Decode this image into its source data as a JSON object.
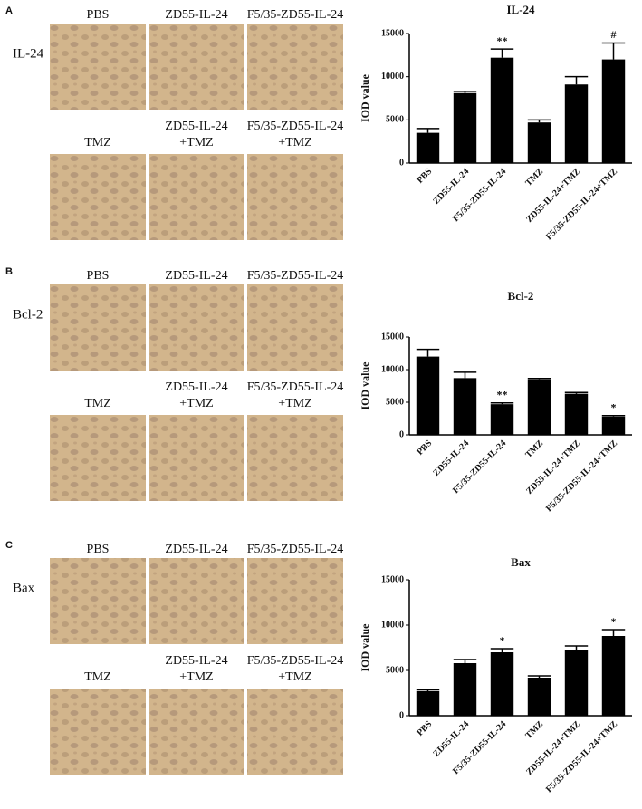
{
  "panels": [
    {
      "label": "A",
      "marker": "IL-24",
      "top": [
        "PBS",
        "ZD55-IL-24",
        "F5/35-ZD55-IL-24"
      ],
      "bottom": [
        [
          "TMZ"
        ],
        [
          "ZD55-IL-24",
          "+TMZ"
        ],
        [
          "F5/35-ZD55-IL-24",
          "+TMZ"
        ]
      ]
    },
    {
      "label": "B",
      "marker": "Bcl-2",
      "top": [
        "PBS",
        "ZD55-IL-24",
        "F5/35-ZD55-IL-24"
      ],
      "bottom": [
        [
          "TMZ"
        ],
        [
          "ZD55-IL-24",
          "+TMZ"
        ],
        [
          "F5/35-ZD55-IL-24",
          "+TMZ"
        ]
      ]
    },
    {
      "label": "C",
      "marker": "Bax",
      "top": [
        "PBS",
        "ZD55-IL-24",
        "F5/35-ZD55-IL-24"
      ],
      "bottom": [
        [
          "TMZ"
        ],
        [
          "ZD55-IL-24",
          "+TMZ"
        ],
        [
          "F5/35-ZD55-IL-24",
          "+TMZ"
        ]
      ]
    }
  ],
  "chart_data": [
    {
      "type": "bar",
      "title": "IL-24",
      "ylabel": "IOD value",
      "color": "#000000",
      "categories": [
        "PBS",
        "ZD55-IL-24",
        "F5/35-ZD55-IL-24",
        "TMZ",
        "ZD55-IL-24+TMZ",
        "F5/35-ZD55-IL-24+TMZ"
      ],
      "values": [
        3500,
        8100,
        12200,
        4700,
        9100,
        12000
      ],
      "errors": [
        500,
        200,
        1000,
        300,
        900,
        1900
      ],
      "annotations": [
        {
          "index": 2,
          "text": "**"
        },
        {
          "index": 5,
          "text": "#"
        }
      ],
      "ylim": [
        0,
        15000
      ],
      "yticks": [
        0,
        5000,
        10000,
        15000
      ]
    },
    {
      "type": "bar",
      "title": "Bcl-2",
      "ylabel": "IOD value",
      "color": "#000000",
      "categories": [
        "PBS",
        "ZD55-IL-24",
        "F5/35-ZD55-IL-24",
        "TMZ",
        "ZD55-IL-24+TMZ",
        "F5/35-ZD55-IL-24+TMZ"
      ],
      "values": [
        12000,
        8700,
        4700,
        8500,
        6300,
        2800
      ],
      "errors": [
        1100,
        900,
        200,
        150,
        200,
        150
      ],
      "annotations": [
        {
          "index": 2,
          "text": "**"
        },
        {
          "index": 5,
          "text": "*"
        }
      ],
      "ylim": [
        0,
        15000
      ],
      "yticks": [
        0,
        5000,
        10000,
        15000
      ]
    },
    {
      "type": "bar",
      "title": "Bax",
      "ylabel": "IOD value",
      "color": "#000000",
      "categories": [
        "PBS",
        "ZD55-IL-24",
        "F5/35-ZD55-IL-24",
        "TMZ",
        "ZD55-IL-24+TMZ",
        "F5/35-ZD55-IL-24+TMZ"
      ],
      "values": [
        2700,
        5800,
        7000,
        4200,
        7300,
        8800
      ],
      "errors": [
        150,
        400,
        400,
        200,
        400,
        700
      ],
      "annotations": [
        {
          "index": 2,
          "text": "*"
        },
        {
          "index": 5,
          "text": "*"
        }
      ],
      "ylim": [
        0,
        15000
      ],
      "yticks": [
        0,
        5000,
        10000,
        15000
      ]
    }
  ]
}
